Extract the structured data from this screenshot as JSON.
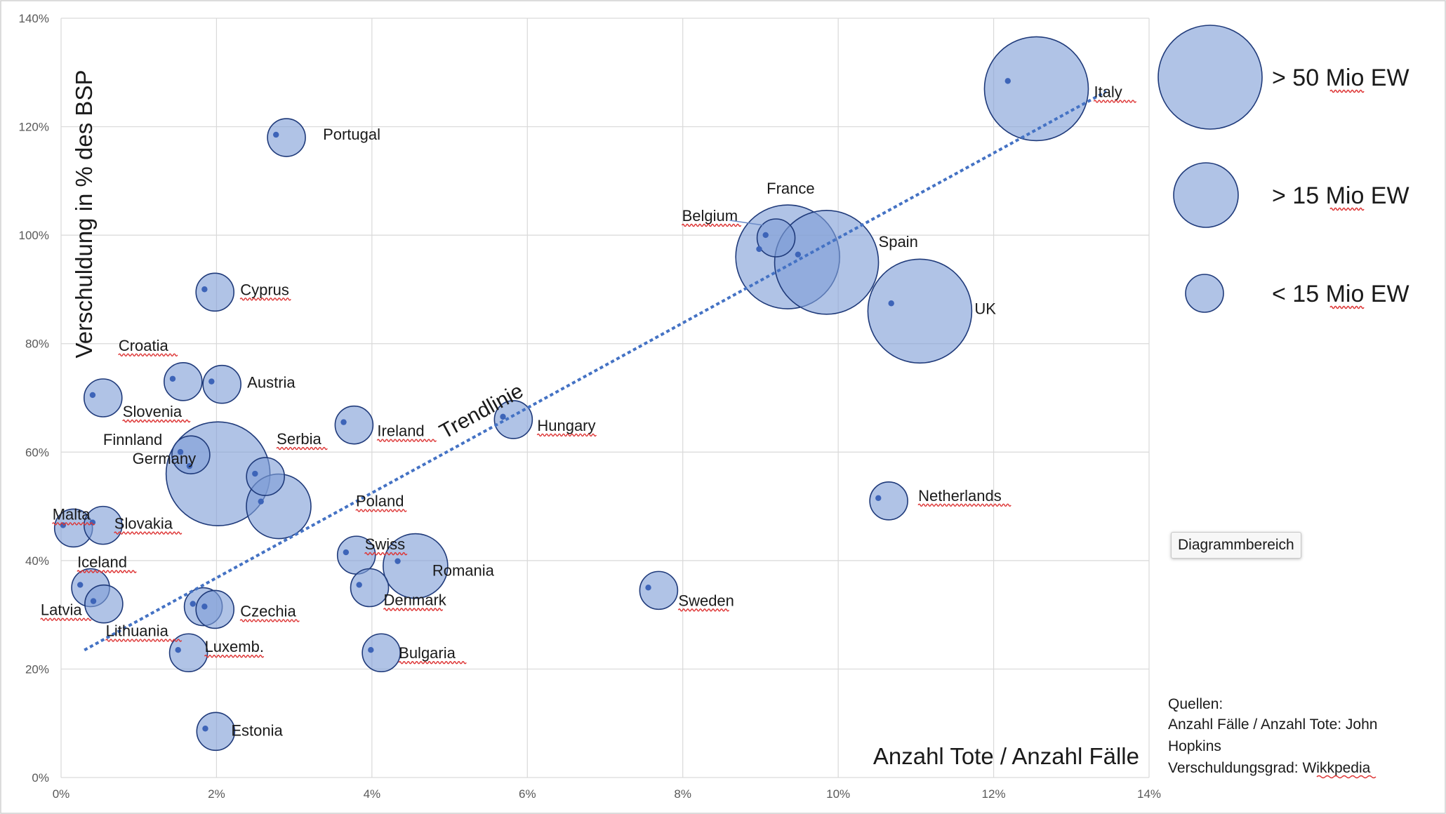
{
  "chart_data": {
    "type": "bubble",
    "title": "",
    "xlabel": "Anzahl Tote / Anzahl Fälle",
    "ylabel": "Verschuldung in % des BSP",
    "xlim": [
      0,
      0.14
    ],
    "ylim": [
      0,
      1.4
    ],
    "x_ticks": [
      "0%",
      "2%",
      "4%",
      "6%",
      "8%",
      "10%",
      "12%",
      "14%"
    ],
    "y_ticks": [
      "0%",
      "20%",
      "40%",
      "60%",
      "80%",
      "100%",
      "120%",
      "140%"
    ],
    "grid": true,
    "points": [
      {
        "label": "Italy",
        "x": 0.1255,
        "y": 1.27,
        "size": "large"
      },
      {
        "label": "Portugal",
        "x": 0.029,
        "y": 1.18,
        "size": "small"
      },
      {
        "label": "France",
        "x": 0.0935,
        "y": 0.96,
        "size": "large"
      },
      {
        "label": "Spain",
        "x": 0.0985,
        "y": 0.95,
        "size": "large"
      },
      {
        "label": "Belgium",
        "x": 0.092,
        "y": 0.995,
        "size": "small"
      },
      {
        "label": "UK",
        "x": 0.1105,
        "y": 0.86,
        "size": "large"
      },
      {
        "label": "Cyprus",
        "x": 0.0198,
        "y": 0.895,
        "size": "small"
      },
      {
        "label": "Croatia",
        "x": 0.0157,
        "y": 0.73,
        "size": "small"
      },
      {
        "label": "Austria",
        "x": 0.0207,
        "y": 0.725,
        "size": "small"
      },
      {
        "label": "Slovenia",
        "x": 0.0054,
        "y": 0.7,
        "size": "small"
      },
      {
        "label": "Ireland",
        "x": 0.0377,
        "y": 0.65,
        "size": "small"
      },
      {
        "label": "Hungary",
        "x": 0.0582,
        "y": 0.66,
        "size": "small"
      },
      {
        "label": "Finnland",
        "x": 0.0167,
        "y": 0.595,
        "size": "small"
      },
      {
        "label": "Germany",
        "x": 0.0202,
        "y": 0.56,
        "size": "large"
      },
      {
        "label": "Serbia",
        "x": 0.0263,
        "y": 0.555,
        "size": "small"
      },
      {
        "label": "Poland",
        "x": 0.028,
        "y": 0.5,
        "size": "medium"
      },
      {
        "label": "Netherlands",
        "x": 0.1065,
        "y": 0.51,
        "size": "small"
      },
      {
        "label": "Malta",
        "x": 0.0016,
        "y": 0.46,
        "size": "small"
      },
      {
        "label": "Slovakia",
        "x": 0.0054,
        "y": 0.465,
        "size": "small"
      },
      {
        "label": "Swiss",
        "x": 0.038,
        "y": 0.41,
        "size": "small"
      },
      {
        "label": "Romania",
        "x": 0.0456,
        "y": 0.39,
        "size": "medium"
      },
      {
        "label": "Denmark",
        "x": 0.0397,
        "y": 0.35,
        "size": "small"
      },
      {
        "label": "Sweden",
        "x": 0.0769,
        "y": 0.345,
        "size": "small"
      },
      {
        "label": "Iceland",
        "x": 0.0038,
        "y": 0.35,
        "size": "small"
      },
      {
        "label": "Latvia",
        "x": 0.0055,
        "y": 0.32,
        "size": "small"
      },
      {
        "label": "Lithuania",
        "x": 0.0183,
        "y": 0.315,
        "size": "small"
      },
      {
        "label": "Czechia",
        "x": 0.0198,
        "y": 0.31,
        "size": "small"
      },
      {
        "label": "Luxemb.",
        "x": 0.0164,
        "y": 0.23,
        "size": "small"
      },
      {
        "label": "Bulgaria",
        "x": 0.0412,
        "y": 0.23,
        "size": "small"
      },
      {
        "label": "Estonia",
        "x": 0.0199,
        "y": 0.085,
        "size": "small"
      }
    ],
    "trendline": {
      "label": "Trendlinie",
      "x": [
        0.003,
        0.1345
      ],
      "y": [
        0.235,
        1.265
      ]
    },
    "legend": [
      {
        "label": "> 50 Mio EW",
        "size": "large"
      },
      {
        "label": "> 15 Mio EW",
        "size": "medium"
      },
      {
        "label": "< 15 Mio EW",
        "size": "small"
      }
    ],
    "annotations": [
      "Quellen:",
      "Anzahl Fälle / Anzahl Tote: John",
      "Hopkins",
      "Verschuldungsgrad: Wikkpedia"
    ],
    "colors": {
      "bubble_fill": "#7f9ed6",
      "bubble_stroke": "#1f3a7a",
      "dot": "#3d64b8",
      "trend": "#4472c4",
      "grid": "#d9d9d9"
    }
  },
  "tooltip": {
    "text": "Diagrammbereich"
  }
}
